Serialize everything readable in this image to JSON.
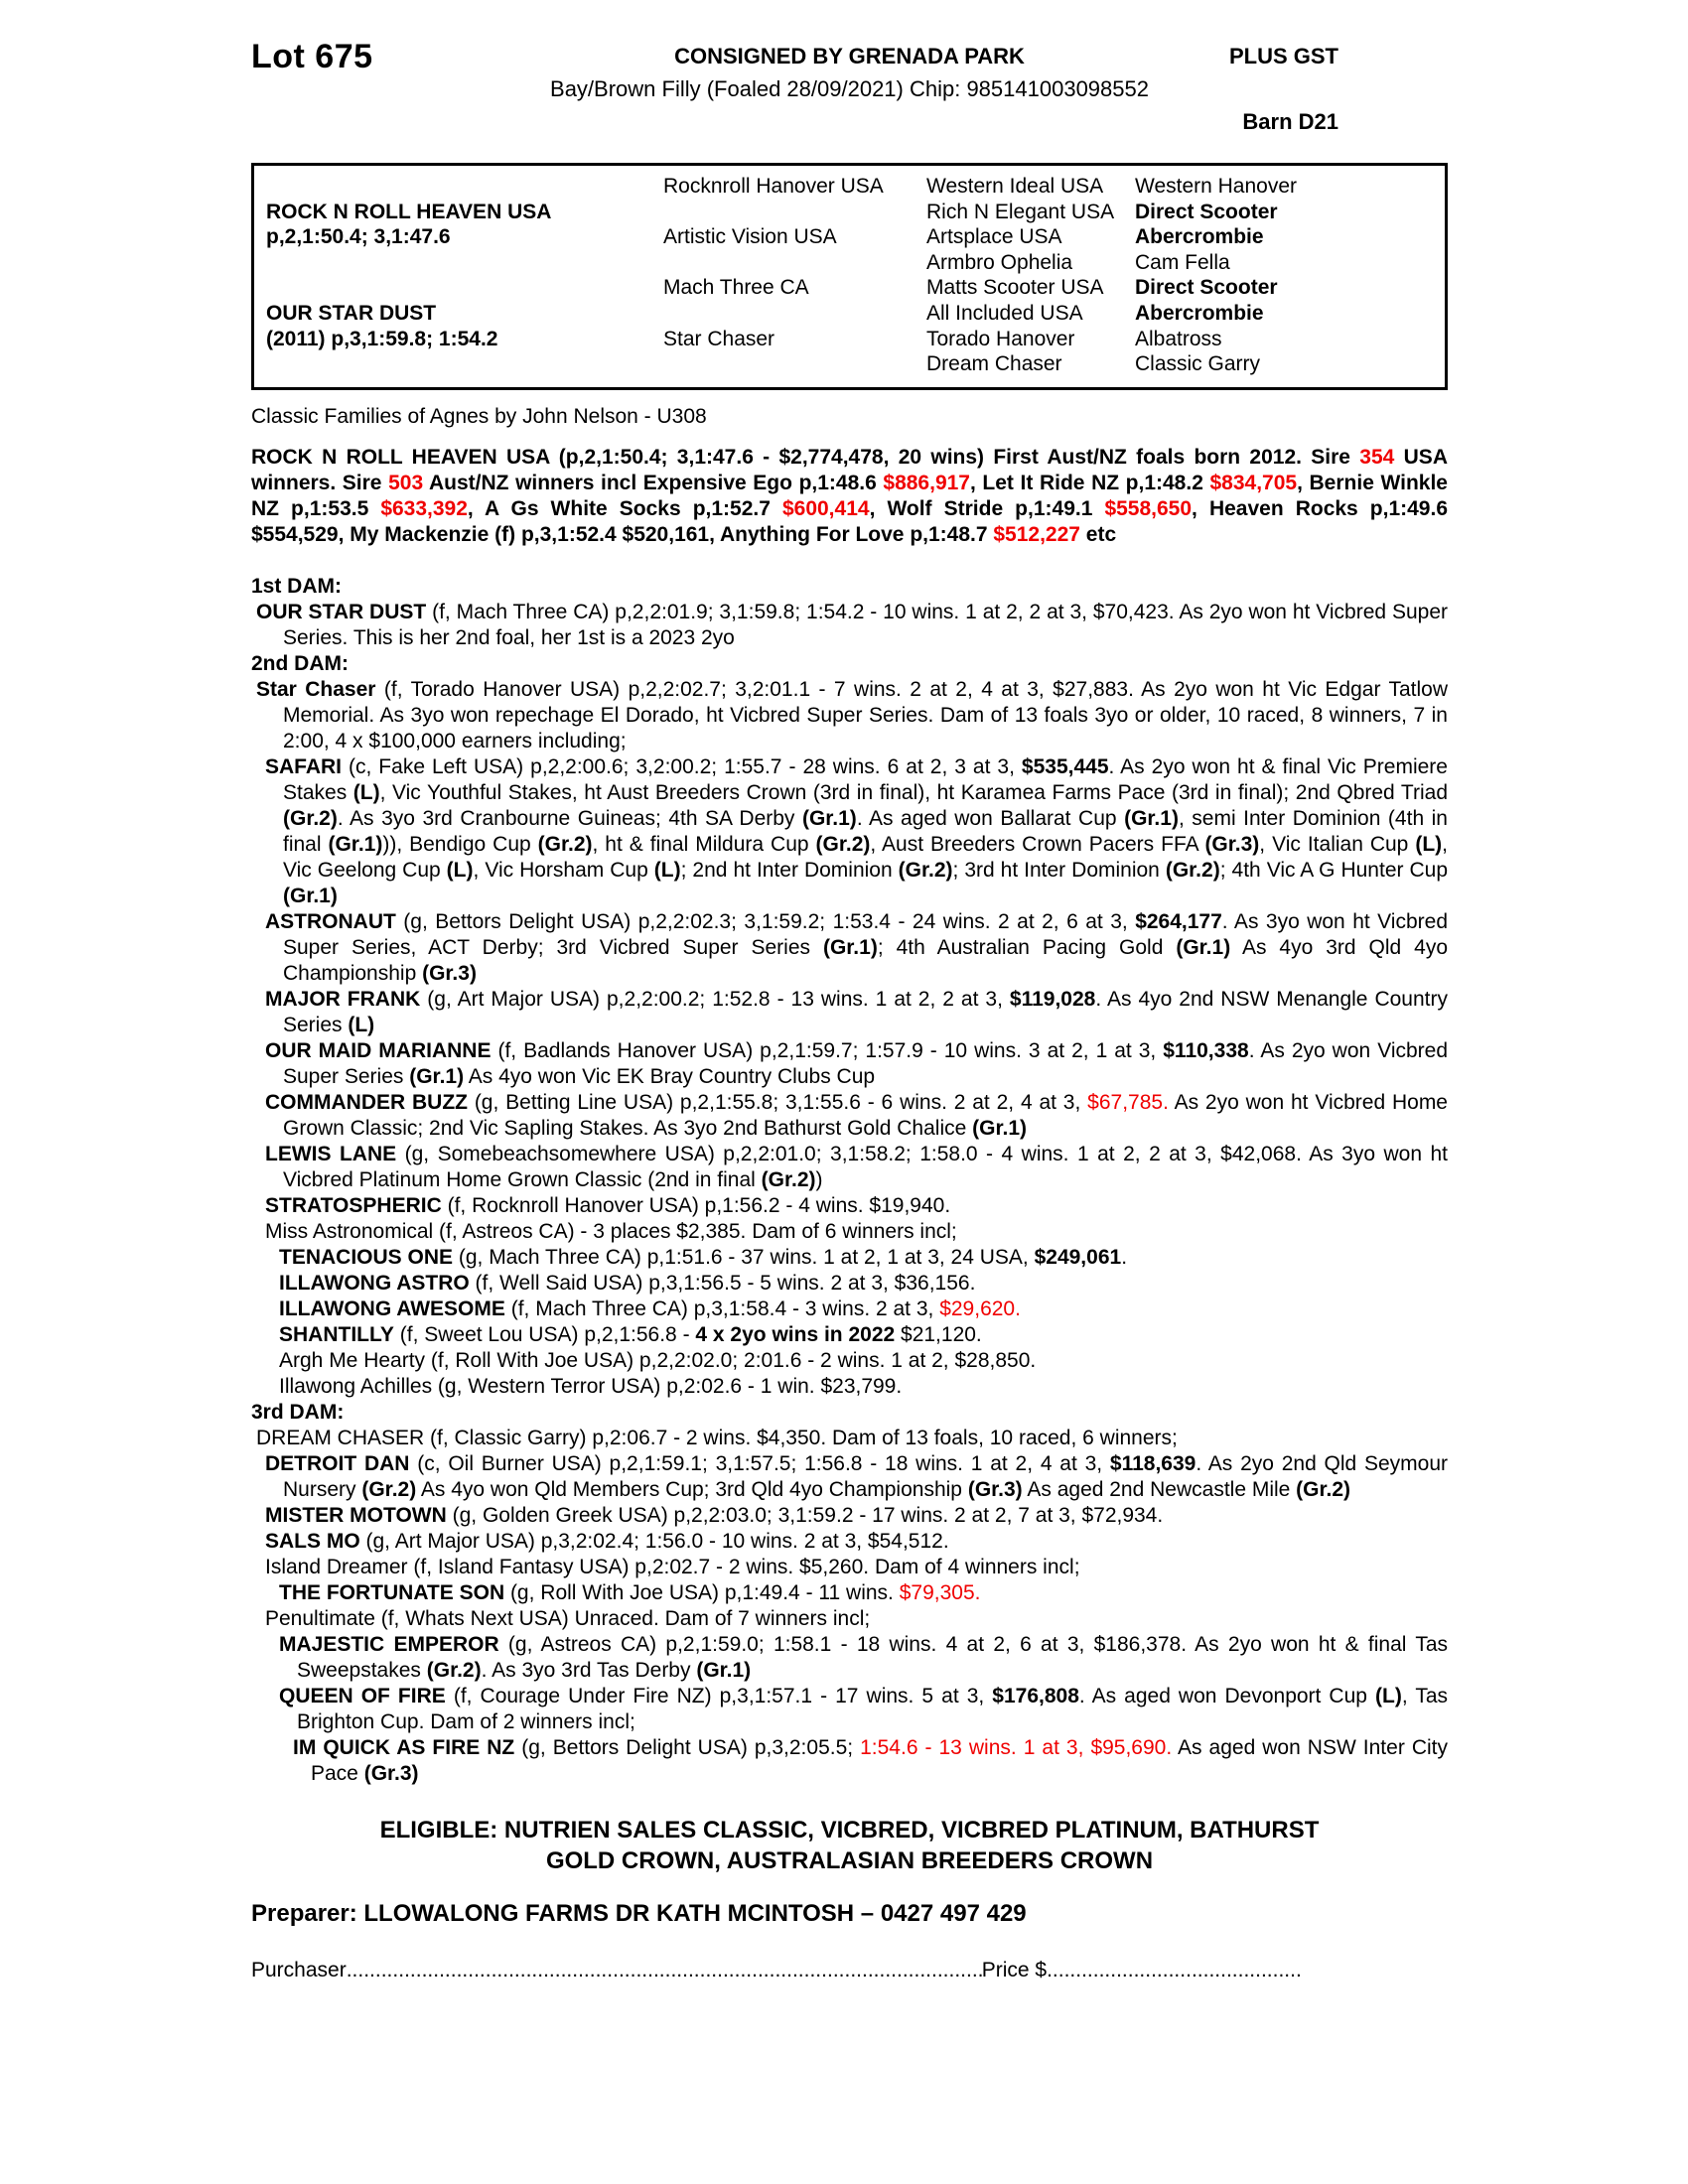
{
  "header": {
    "lot": "Lot 675",
    "consigned": "CONSIGNED BY GRENADA PARK",
    "plus_gst": "PLUS GST",
    "foal_description": "Bay/Brown Filly (Foaled 28/09/2021) Chip: 985141003098552",
    "barn": "Barn D21"
  },
  "pedigree_table": {
    "principals": [
      {
        "row": 2,
        "name": "ROCK N ROLL HEAVEN USA",
        "record": "p,2,1:50.4; 3,1:47.6"
      },
      {
        "row": 6,
        "name": "OUR STAR DUST",
        "record": "(2011) p,3,1:59.8; 1:54.2"
      }
    ],
    "gen2": [
      "Rocknroll Hanover USA",
      "Artistic Vision USA",
      "Mach Three CA",
      "Star Chaser"
    ],
    "gen3": [
      "Western Ideal USA",
      "Rich N Elegant USA",
      "Artsplace USA",
      "Armbro Ophelia",
      "Matts Scooter USA",
      "All Included USA",
      "Torado Hanover",
      "Dream Chaser"
    ],
    "gen4": [
      {
        "t": "Western Hanover"
      },
      {
        "t": "Direct Scooter",
        "b": true
      },
      {
        "t": "Abercrombie",
        "b": true
      },
      {
        "t": "Cam Fella"
      },
      {
        "t": "Direct Scooter",
        "b": true
      },
      {
        "t": "Abercrombie",
        "b": true
      },
      {
        "t": "Albatross"
      },
      {
        "t": "Classic Garry"
      }
    ]
  },
  "family_note": "Classic Families of Agnes by John Nelson - U308",
  "sire_paragraph": {
    "segments": [
      {
        "t": "ROCK N ROLL HEAVEN USA (p,2,1:50.4; 3,1:47.6 - $2,774,478, 20 wins) First Aust/NZ foals born 2012. Sire "
      },
      {
        "t": "354",
        "r": true
      },
      {
        "t": " USA winners. Sire "
      },
      {
        "t": "503",
        "r": true
      },
      {
        "t": " Aust/NZ winners incl Expensive Ego p,1:48.6 "
      },
      {
        "t": "$886,917",
        "r": true
      },
      {
        "t": ", Let It Ride NZ p,1:48.2 "
      },
      {
        "t": "$834,705",
        "r": true
      },
      {
        "t": ", Bernie Winkle NZ p,1:53.5 "
      },
      {
        "t": "$633,392",
        "r": true
      },
      {
        "t": ", A Gs White Socks p,1:52.7 "
      },
      {
        "t": "$600,414",
        "r": true
      },
      {
        "t": ", Wolf Stride p,1:49.1 "
      },
      {
        "t": "$558,650",
        "r": true
      },
      {
        "t": ", Heaven Rocks p,1:49.6 $554,529, My Mackenzie (f) p,3,1:52.4 $520,161, Anything For Love p,1:48.7 "
      },
      {
        "t": "$512,227",
        "r": true
      },
      {
        "t": " etc"
      }
    ]
  },
  "sections": [
    {
      "heading": "1st DAM:",
      "entries": [
        {
          "level": 1,
          "segments": [
            {
              "t": "OUR STAR DUST",
              "b": true
            },
            {
              "t": " (f, Mach Three CA) p,2,2:01.9; 3,1:59.8; 1:54.2 - 10 wins. 1 at 2, 2 at 3, $70,423. As 2yo won ht Vicbred Super Series. This is her 2nd foal, her 1st is a 2023 2yo"
            }
          ]
        }
      ]
    },
    {
      "heading": "2nd DAM:",
      "entries": [
        {
          "level": 1,
          "segments": [
            {
              "t": "Star Chaser",
              "b": true
            },
            {
              "t": " (f, Torado Hanover USA) p,2,2:02.7; 3,2:01.1 - 7 wins. 2 at 2, 4 at 3, $27,883. As 2yo won ht Vic Edgar Tatlow Memorial. As 3yo won repechage El Dorado, ht Vicbred Super Series. Dam of 13 foals 3yo or older, 10 raced, 8 winners, 7 in 2:00, 4 x $100,000 earners including;"
            }
          ]
        },
        {
          "level": 2,
          "segments": [
            {
              "t": "SAFARI",
              "b": true
            },
            {
              "t": " (c, Fake Left USA) p,2,2:00.6; 3,2:00.2; 1:55.7 - 28 wins. 6 at 2, 3 at 3, "
            },
            {
              "t": "$535,445",
              "b": true
            },
            {
              "t": ". As 2yo won ht & final Vic Premiere Stakes "
            },
            {
              "t": "(L)",
              "b": true
            },
            {
              "t": ", Vic Youthful Stakes, ht Aust Breeders Crown (3rd in final), ht Karamea Farms Pace (3rd in final); 2nd Qbred Triad "
            },
            {
              "t": "(Gr.2)",
              "b": true
            },
            {
              "t": ". As 3yo 3rd Cranbourne Guineas; 4th SA Derby "
            },
            {
              "t": "(Gr.1)",
              "b": true
            },
            {
              "t": ". As aged won Ballarat Cup "
            },
            {
              "t": "(Gr.1)",
              "b": true
            },
            {
              "t": ", semi Inter Dominion (4th in final "
            },
            {
              "t": "(Gr.1)",
              "b": true
            },
            {
              "t": ")), Bendigo Cup "
            },
            {
              "t": "(Gr.2)",
              "b": true
            },
            {
              "t": ", ht & final Mildura Cup "
            },
            {
              "t": "(Gr.2)",
              "b": true
            },
            {
              "t": ", Aust Breeders Crown Pacers FFA "
            },
            {
              "t": "(Gr.3)",
              "b": true
            },
            {
              "t": ", Vic Italian Cup "
            },
            {
              "t": "(L)",
              "b": true
            },
            {
              "t": ", Vic Geelong Cup "
            },
            {
              "t": "(L)",
              "b": true
            },
            {
              "t": ", Vic Horsham Cup "
            },
            {
              "t": "(L)",
              "b": true
            },
            {
              "t": "; 2nd ht Inter Dominion "
            },
            {
              "t": "(Gr.2)",
              "b": true
            },
            {
              "t": "; 3rd ht Inter Dominion "
            },
            {
              "t": "(Gr.2)",
              "b": true
            },
            {
              "t": "; 4th Vic A G Hunter Cup "
            },
            {
              "t": "(Gr.1)",
              "b": true
            }
          ]
        },
        {
          "level": 2,
          "segments": [
            {
              "t": "ASTRONAUT",
              "b": true
            },
            {
              "t": " (g, Bettors Delight USA) p,2,2:02.3; 3,1:59.2; 1:53.4 - 24 wins. 2 at 2, 6 at 3, "
            },
            {
              "t": "$264,177",
              "b": true
            },
            {
              "t": ". As 3yo won ht Vicbred Super Series, ACT Derby; 3rd Vicbred Super Series "
            },
            {
              "t": "(Gr.1)",
              "b": true
            },
            {
              "t": "; 4th Australian Pacing Gold "
            },
            {
              "t": "(Gr.1)",
              "b": true
            },
            {
              "t": " As 4yo 3rd Qld 4yo Championship "
            },
            {
              "t": "(Gr.3)",
              "b": true
            }
          ]
        },
        {
          "level": 2,
          "segments": [
            {
              "t": "MAJOR FRANK",
              "b": true
            },
            {
              "t": " (g, Art Major USA) p,2,2:00.2; 1:52.8 - 13 wins. 1 at 2, 2 at 3, "
            },
            {
              "t": "$119,028",
              "b": true
            },
            {
              "t": ". As 4yo 2nd NSW Menangle Country Series "
            },
            {
              "t": "(L)",
              "b": true
            }
          ]
        },
        {
          "level": 2,
          "segments": [
            {
              "t": "OUR MAID MARIANNE",
              "b": true
            },
            {
              "t": " (f, Badlands Hanover USA) p,2,1:59.7; 1:57.9 - 10 wins. 3 at 2, 1 at 3, "
            },
            {
              "t": "$110,338",
              "b": true
            },
            {
              "t": ". As 2yo won Vicbred Super Series "
            },
            {
              "t": "(Gr.1)",
              "b": true
            },
            {
              "t": " As 4yo won Vic EK Bray Country Clubs Cup"
            }
          ]
        },
        {
          "level": 2,
          "segments": [
            {
              "t": "COMMANDER BUZZ",
              "b": true
            },
            {
              "t": " (g, Betting Line USA) p,2,1:55.8; 3,1:55.6 - 6 wins. 2 at 2, 4 at 3, "
            },
            {
              "t": "$67,785.",
              "r": true
            },
            {
              "t": " As 2yo won ht Vicbred Home Grown Classic; 2nd Vic Sapling Stakes. As 3yo 2nd Bathurst Gold Chalice "
            },
            {
              "t": "(Gr.1)",
              "b": true
            }
          ]
        },
        {
          "level": 2,
          "segments": [
            {
              "t": "LEWIS LANE",
              "b": true
            },
            {
              "t": " (g, Somebeachsomewhere USA) p,2,2:01.0; 3,1:58.2; 1:58.0 - 4 wins. 1 at 2, 2 at 3, $42,068. As 3yo won ht Vicbred Platinum Home Grown Classic (2nd in final "
            },
            {
              "t": "(Gr.2)",
              "b": true
            },
            {
              "t": ")"
            }
          ]
        },
        {
          "level": 2,
          "segments": [
            {
              "t": "STRATOSPHERIC",
              "b": true
            },
            {
              "t": " (f, Rocknroll Hanover USA) p,1:56.2 - 4 wins. $19,940."
            }
          ]
        },
        {
          "level": 2,
          "segments": [
            {
              "t": "Miss Astronomical (f, Astreos CA) - 3 places $2,385. Dam of 6 winners incl;"
            }
          ]
        },
        {
          "level": 3,
          "segments": [
            {
              "t": "TENACIOUS ONE",
              "b": true
            },
            {
              "t": " (g, Mach Three CA) p,1:51.6 - 37 wins. 1 at 2, 1 at 3, 24 USA, "
            },
            {
              "t": "$249,061",
              "b": true
            },
            {
              "t": "."
            }
          ]
        },
        {
          "level": 3,
          "segments": [
            {
              "t": "ILLAWONG ASTRO",
              "b": true
            },
            {
              "t": " (f, Well Said USA) p,3,1:56.5 - 5 wins. 2 at 3, $36,156."
            }
          ]
        },
        {
          "level": 3,
          "segments": [
            {
              "t": "ILLAWONG AWESOME",
              "b": true
            },
            {
              "t": " (f, Mach Three CA) p,3,1:58.4 - 3 wins. 2 at 3, "
            },
            {
              "t": "$29,620.",
              "r": true
            }
          ]
        },
        {
          "level": 3,
          "segments": [
            {
              "t": "SHANTILLY",
              "b": true
            },
            {
              "t": " (f, Sweet Lou USA) p,2,1:56.8 - "
            },
            {
              "t": "4 x 2yo wins in 2022",
              "b": true
            },
            {
              "t": " $21,120."
            }
          ]
        },
        {
          "level": 3,
          "segments": [
            {
              "t": "Argh Me Hearty (f, Roll With Joe USA) p,2,2:02.0; 2:01.6 - 2 wins. 1 at 2, $28,850."
            }
          ]
        },
        {
          "level": 3,
          "segments": [
            {
              "t": "Illawong Achilles (g, Western Terror USA) p,2:02.6 - 1 win. $23,799."
            }
          ]
        }
      ]
    },
    {
      "heading": "3rd DAM:",
      "entries": [
        {
          "level": 1,
          "segments": [
            {
              "t": "DREAM CHASER (f, Classic Garry) p,2:06.7 - 2 wins. $4,350. Dam of 13 foals, 10 raced, 6 winners;"
            }
          ]
        },
        {
          "level": 2,
          "segments": [
            {
              "t": "DETROIT DAN",
              "b": true
            },
            {
              "t": " (c, Oil Burner USA) p,2,1:59.1; 3,1:57.5; 1:56.8 - 18 wins. 1 at 2, 4 at 3, "
            },
            {
              "t": "$118,639",
              "b": true
            },
            {
              "t": ". As 2yo 2nd Qld Seymour Nursery "
            },
            {
              "t": "(Gr.2)",
              "b": true
            },
            {
              "t": " As 4yo won Qld Members Cup; 3rd Qld 4yo Championship "
            },
            {
              "t": "(Gr.3)",
              "b": true
            },
            {
              "t": " As aged 2nd Newcastle Mile "
            },
            {
              "t": "(Gr.2)",
              "b": true
            }
          ]
        },
        {
          "level": 2,
          "segments": [
            {
              "t": "MISTER MOTOWN",
              "b": true
            },
            {
              "t": " (g, Golden Greek USA) p,2,2:03.0; 3,1:59.2 - 17 wins. 2 at 2, 7 at 3, $72,934."
            }
          ]
        },
        {
          "level": 2,
          "segments": [
            {
              "t": "SALS MO",
              "b": true
            },
            {
              "t": " (g, Art Major USA) p,3,2:02.4; 1:56.0 - 10 wins. 2 at 3, $54,512."
            }
          ]
        },
        {
          "level": 2,
          "segments": [
            {
              "t": "Island Dreamer (f, Island Fantasy USA) p,2:02.7 - 2 wins. $5,260. Dam of 4 winners incl;"
            }
          ]
        },
        {
          "level": 3,
          "segments": [
            {
              "t": "THE FORTUNATE SON",
              "b": true
            },
            {
              "t": " (g, Roll With Joe USA) p,1:49.4 - 11 wins. "
            },
            {
              "t": "$79,305.",
              "r": true
            }
          ]
        },
        {
          "level": 2,
          "segments": [
            {
              "t": "Penultimate (f, Whats Next USA) Unraced. Dam of 7 winners incl;"
            }
          ]
        },
        {
          "level": 3,
          "segments": [
            {
              "t": "MAJESTIC EMPEROR",
              "b": true
            },
            {
              "t": " (g, Astreos CA) p,2,1:59.0; 1:58.1 - 18 wins. 4 at 2, 6 at 3, $186,378. As 2yo won ht & final Tas Sweepstakes "
            },
            {
              "t": "(Gr.2)",
              "b": true
            },
            {
              "t": ". As 3yo 3rd Tas Derby "
            },
            {
              "t": "(Gr.1)",
              "b": true
            }
          ]
        },
        {
          "level": 3,
          "segments": [
            {
              "t": "QUEEN OF FIRE",
              "b": true
            },
            {
              "t": " (f, Courage Under Fire NZ) p,3,1:57.1 - 17 wins. 5 at 3, "
            },
            {
              "t": "$176,808",
              "b": true
            },
            {
              "t": ". As aged won Devonport Cup "
            },
            {
              "t": "(L)",
              "b": true
            },
            {
              "t": ", Tas Brighton Cup. Dam of 2 winners incl;"
            }
          ]
        },
        {
          "level": 4,
          "segments": [
            {
              "t": "IM QUICK AS FIRE NZ",
              "b": true
            },
            {
              "t": " (g, Bettors Delight USA) p,3,2:05.5; "
            },
            {
              "t": "1:54.6 - 13 wins. 1 at 3, $95,690.",
              "r": true
            },
            {
              "t": " As aged won NSW Inter City Pace "
            },
            {
              "t": "(Gr.3)",
              "b": true
            }
          ]
        }
      ]
    }
  ],
  "eligible": {
    "line1": "ELIGIBLE: NUTRIEN SALES CLASSIC, VICBRED, VICBRED PLATINUM, BATHURST",
    "line2": "GOLD CROWN, AUSTRALASIAN BREEDERS CROWN"
  },
  "preparer": "Preparer: LLOWALONG FARMS DR KATH MCINTOSH – 0427 497 429",
  "purchaser_line": {
    "purchaser_label": "Purchaser",
    "dots1": "........................................................................................................................................",
    "price_label": "Price $",
    "dots2": "..................................................................."
  },
  "colors": {
    "highlight_red": "#f00000",
    "text_black": "#000000",
    "page_white": "#ffffff"
  }
}
